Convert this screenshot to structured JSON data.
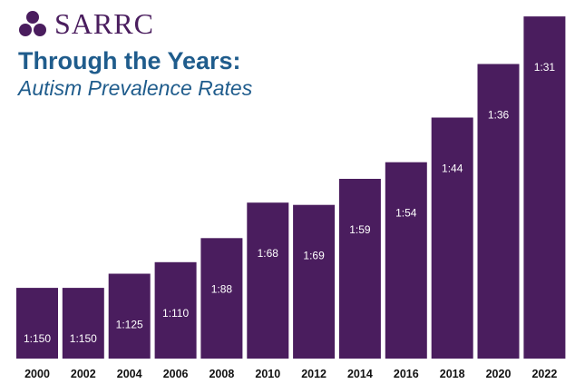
{
  "brand": {
    "name": "SARRC",
    "logo_icon": "three-circles-logo-icon",
    "color": "#4a1d5e"
  },
  "chart_data": {
    "type": "bar",
    "title": "Through the Years:",
    "subtitle": "Autism Prevalence Rates",
    "categories": [
      "2000",
      "2002",
      "2004",
      "2006",
      "2008",
      "2010",
      "2012",
      "2014",
      "2016",
      "2018",
      "2020",
      "2022"
    ],
    "data_labels": [
      "1:150",
      "1:150",
      "1:125",
      "1:110",
      "1:88",
      "1:68",
      "1:69",
      "1:59",
      "1:54",
      "1:44",
      "1:36",
      "1:31"
    ],
    "values": [
      0.00667,
      0.00667,
      0.008,
      0.00909,
      0.01136,
      0.01471,
      0.01449,
      0.01695,
      0.01852,
      0.02273,
      0.02778,
      0.03226
    ],
    "ylim": [
      0,
      0.0333
    ],
    "xlabel": "",
    "ylabel": "",
    "grid": false,
    "legend": "none",
    "colors": {
      "bar": "#4a1d5e",
      "title": "#1f5c8c"
    }
  }
}
